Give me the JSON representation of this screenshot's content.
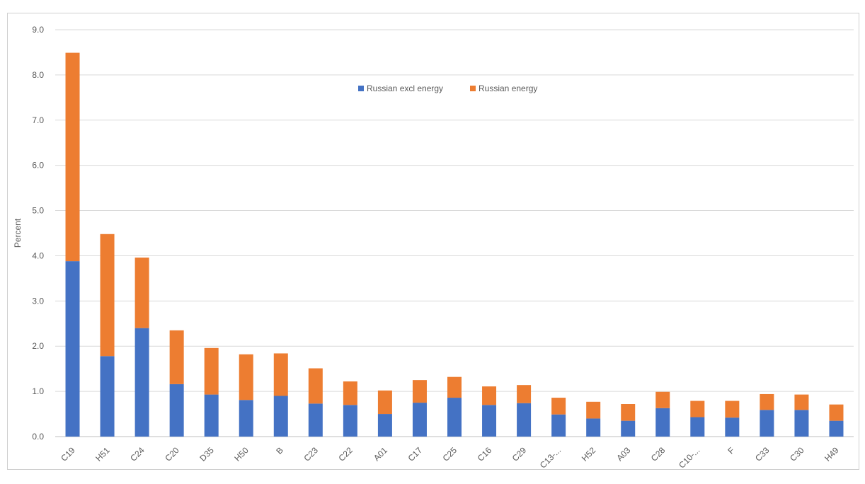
{
  "chart_data": {
    "type": "bar",
    "stacked": true,
    "title": "",
    "xlabel": "",
    "ylabel": "Percent",
    "ylim": [
      0,
      9
    ],
    "yticks": [
      "0.0",
      "1.0",
      "2.0",
      "3.0",
      "4.0",
      "5.0",
      "6.0",
      "7.0",
      "8.0",
      "9.0"
    ],
    "grid": true,
    "legend_position": "top-center",
    "categories": [
      "C19",
      "H51",
      "C24",
      "C20",
      "D35",
      "H50",
      "B",
      "C23",
      "C22",
      "A01",
      "C17",
      "C25",
      "C16",
      "C29",
      "C13-...",
      "H52",
      "A03",
      "C28",
      "C10-...",
      "F",
      "C33",
      "C30",
      "H49"
    ],
    "series": [
      {
        "name": "Russian excl energy",
        "color": "#4472C4",
        "values": [
          3.88,
          1.78,
          2.4,
          1.16,
          0.93,
          0.81,
          0.9,
          0.73,
          0.7,
          0.5,
          0.75,
          0.86,
          0.7,
          0.74,
          0.49,
          0.4,
          0.35,
          0.63,
          0.43,
          0.42,
          0.59,
          0.59,
          0.35
        ]
      },
      {
        "name": "Russian energy",
        "color": "#ED7D31",
        "values": [
          4.61,
          2.7,
          1.56,
          1.19,
          1.03,
          1.01,
          0.94,
          0.78,
          0.52,
          0.52,
          0.5,
          0.46,
          0.41,
          0.4,
          0.37,
          0.37,
          0.37,
          0.36,
          0.36,
          0.37,
          0.35,
          0.34,
          0.36
        ]
      }
    ]
  }
}
